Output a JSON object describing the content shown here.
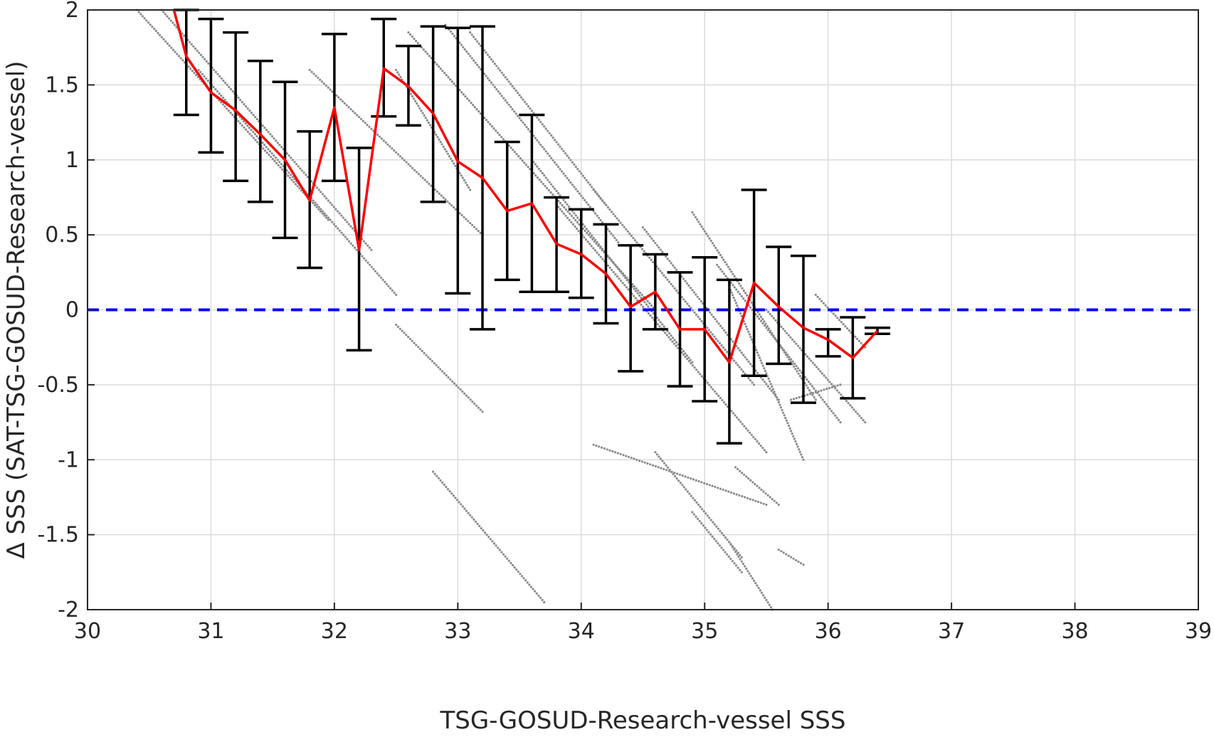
{
  "chart_data": {
    "type": "scatter",
    "title": "",
    "xlabel": "TSG-GOSUD-Research-vessel SSS",
    "ylabel": "Δ SSS (SAT-TSG-GOSUD-Research-vessel)",
    "xlim": [
      30,
      39
    ],
    "ylim": [
      -2,
      2
    ],
    "x_ticks": [
      "30",
      "31",
      "32",
      "33",
      "34",
      "35",
      "36",
      "37",
      "38",
      "39"
    ],
    "y_ticks": [
      "2",
      "1.5",
      "1",
      "0.5",
      "0",
      "-0.5",
      "-1",
      "-1.5",
      "-2"
    ],
    "grid": true,
    "legend": "none",
    "colors": {
      "scatter": "#8c8c8c",
      "mean_line": "#ff0000",
      "error_bars": "#000000",
      "zero_line": "#0000ff",
      "grid": "#dcdcdc",
      "axes": "#262626"
    },
    "reference_line": {
      "y": 0,
      "style": "dashed"
    },
    "mean_curve": {
      "x": [
        30.7,
        30.8,
        31.0,
        31.2,
        31.4,
        31.6,
        31.8,
        32.0,
        32.2,
        32.4,
        32.6,
        32.8,
        33.0,
        33.2,
        33.4,
        33.6,
        33.8,
        34.0,
        34.2,
        34.4,
        34.6,
        34.8,
        35.0,
        35.2,
        35.4,
        35.6,
        35.8,
        36.0,
        36.2,
        36.4
      ],
      "y": [
        2.0,
        1.69,
        1.45,
        1.33,
        1.17,
        1.0,
        0.73,
        1.35,
        0.4,
        1.61,
        1.49,
        1.31,
        0.99,
        0.88,
        0.66,
        0.71,
        0.44,
        0.37,
        0.24,
        0.02,
        0.12,
        -0.13,
        -0.13,
        -0.35,
        0.18,
        0.02,
        -0.12,
        -0.2,
        -0.32,
        -0.14
      ]
    },
    "error_bars": [
      {
        "x": 30.8,
        "low": 1.3,
        "high": 2.0
      },
      {
        "x": 31.0,
        "low": 1.05,
        "high": 1.94
      },
      {
        "x": 31.2,
        "low": 0.86,
        "high": 1.85
      },
      {
        "x": 31.4,
        "low": 0.72,
        "high": 1.66
      },
      {
        "x": 31.6,
        "low": 0.48,
        "high": 1.52
      },
      {
        "x": 31.8,
        "low": 0.28,
        "high": 1.19
      },
      {
        "x": 32.0,
        "low": 0.86,
        "high": 1.84
      },
      {
        "x": 32.2,
        "low": -0.27,
        "high": 1.08
      },
      {
        "x": 32.4,
        "low": 1.29,
        "high": 1.94
      },
      {
        "x": 32.6,
        "low": 1.23,
        "high": 1.76
      },
      {
        "x": 32.8,
        "low": 0.72,
        "high": 1.89
      },
      {
        "x": 33.0,
        "low": 0.11,
        "high": 1.88
      },
      {
        "x": 33.2,
        "low": -0.13,
        "high": 1.89
      },
      {
        "x": 33.4,
        "low": 0.2,
        "high": 1.12
      },
      {
        "x": 33.6,
        "low": 0.12,
        "high": 1.3
      },
      {
        "x": 33.8,
        "low": 0.12,
        "high": 0.75
      },
      {
        "x": 34.0,
        "low": 0.08,
        "high": 0.67
      },
      {
        "x": 34.2,
        "low": -0.09,
        "high": 0.57
      },
      {
        "x": 34.4,
        "low": -0.41,
        "high": 0.43
      },
      {
        "x": 34.6,
        "low": -0.13,
        "high": 0.37
      },
      {
        "x": 34.8,
        "low": -0.51,
        "high": 0.25
      },
      {
        "x": 35.0,
        "low": -0.61,
        "high": 0.35
      },
      {
        "x": 35.2,
        "low": -0.89,
        "high": 0.2
      },
      {
        "x": 35.4,
        "low": -0.44,
        "high": 0.8
      },
      {
        "x": 35.6,
        "low": -0.36,
        "high": 0.42
      },
      {
        "x": 35.8,
        "low": -0.62,
        "high": 0.36
      },
      {
        "x": 36.0,
        "low": -0.31,
        "high": -0.13
      },
      {
        "x": 36.2,
        "low": -0.59,
        "high": -0.05
      },
      {
        "x": 36.4,
        "low": -0.16,
        "high": -0.12
      }
    ],
    "scatter_segments": [
      {
        "x0": 30.4,
        "y0": 2.0,
        "x1": 31.95,
        "y1": 0.6
      },
      {
        "x0": 30.6,
        "y0": 2.0,
        "x1": 32.3,
        "y1": 0.4
      },
      {
        "x0": 30.9,
        "y0": 1.6,
        "x1": 32.5,
        "y1": 0.1
      },
      {
        "x0": 31.8,
        "y0": 1.6,
        "x1": 33.2,
        "y1": 0.5
      },
      {
        "x0": 32.5,
        "y0": 1.6,
        "x1": 33.1,
        "y1": 0.8
      },
      {
        "x0": 32.6,
        "y0": 1.85,
        "x1": 34.6,
        "y1": 0.0
      },
      {
        "x0": 32.9,
        "y0": 1.9,
        "x1": 34.3,
        "y1": 0.45
      },
      {
        "x0": 33.1,
        "y0": 1.85,
        "x1": 34.2,
        "y1": 0.7
      },
      {
        "x0": 33.6,
        "y0": 1.0,
        "x1": 34.9,
        "y1": -0.35
      },
      {
        "x0": 33.8,
        "y0": 0.7,
        "x1": 35.5,
        "y1": -0.95
      },
      {
        "x0": 34.1,
        "y0": 0.8,
        "x1": 35.4,
        "y1": -0.5
      },
      {
        "x0": 34.5,
        "y0": 0.55,
        "x1": 35.6,
        "y1": -0.6
      },
      {
        "x0": 34.9,
        "y0": 0.65,
        "x1": 35.9,
        "y1": -0.6
      },
      {
        "x0": 35.1,
        "y0": 0.3,
        "x1": 36.1,
        "y1": -0.75
      },
      {
        "x0": 35.2,
        "y0": 0.15,
        "x1": 35.8,
        "y1": -1.0
      },
      {
        "x0": 35.5,
        "y0": 0.0,
        "x1": 36.3,
        "y1": -0.75
      },
      {
        "x0": 35.7,
        "y0": -0.6,
        "x1": 36.1,
        "y1": -0.5
      },
      {
        "x0": 35.9,
        "y0": 0.1,
        "x1": 36.3,
        "y1": -0.25
      },
      {
        "x0": 32.5,
        "y0": -0.1,
        "x1": 33.2,
        "y1": -0.68
      },
      {
        "x0": 32.8,
        "y0": -1.08,
        "x1": 33.7,
        "y1": -1.95
      },
      {
        "x0": 34.1,
        "y0": -0.9,
        "x1": 35.5,
        "y1": -1.3
      },
      {
        "x0": 34.6,
        "y0": -0.95,
        "x1": 35.3,
        "y1": -1.65
      },
      {
        "x0": 34.9,
        "y0": -1.35,
        "x1": 35.3,
        "y1": -1.75
      },
      {
        "x0": 35.2,
        "y0": -1.55,
        "x1": 35.55,
        "y1": -2.0
      },
      {
        "x0": 35.6,
        "y0": -1.6,
        "x1": 35.8,
        "y1": -1.7
      },
      {
        "x0": 35.25,
        "y0": -1.05,
        "x1": 35.6,
        "y1": -1.3
      }
    ]
  }
}
